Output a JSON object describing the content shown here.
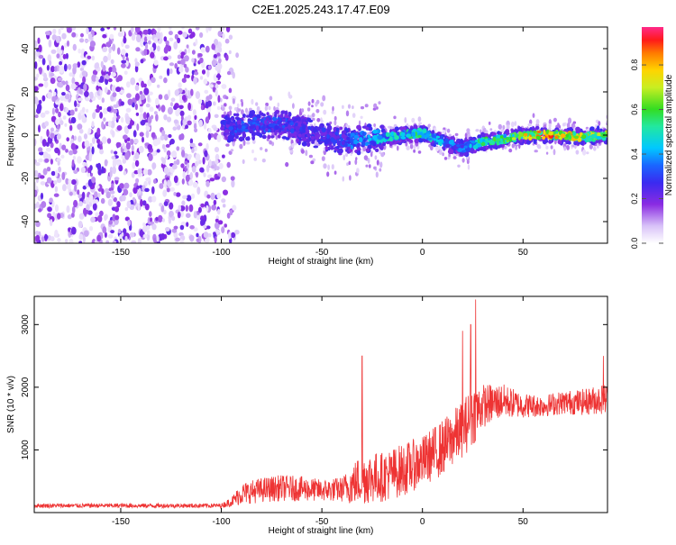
{
  "title": "C2E1.2025.243.17.47.E09",
  "chart_data": [
    {
      "type": "heatmap",
      "name": "spectrogram",
      "xlabel": "Height of straight line (km)",
      "ylabel": "Frequency (Hz)",
      "xlim": [
        -193,
        92
      ],
      "ylim": [
        -50,
        50
      ],
      "xticks": [
        -150,
        -100,
        -50,
        0,
        50
      ],
      "yticks": [
        -40,
        -20,
        0,
        20,
        40
      ],
      "colorbar": {
        "label": "Normalized spectral amplitude",
        "range": [
          0.0,
          0.97
        ],
        "ticks": [
          "0.0",
          "0.2",
          "0.4",
          "0.6",
          "0.8"
        ],
        "tick_values": [
          0.0,
          0.2,
          0.4,
          0.6,
          0.8
        ]
      },
      "signal_region_start_km": -100,
      "ridge": {
        "x": [
          -100,
          -90,
          -80,
          -70,
          -60,
          -50,
          -40,
          -30,
          -20,
          -10,
          0,
          10,
          20,
          30,
          40,
          50,
          60,
          70,
          80,
          90
        ],
        "freq": [
          3,
          4,
          5,
          5,
          2,
          0,
          -3,
          -2,
          -1,
          0,
          1,
          -3,
          -6,
          -3,
          -2,
          0,
          0,
          0,
          -1,
          0
        ],
        "amplitude": [
          0.3,
          0.35,
          0.35,
          0.35,
          0.3,
          0.3,
          0.35,
          0.45,
          0.5,
          0.55,
          0.6,
          0.45,
          0.4,
          0.6,
          0.65,
          0.8,
          0.97,
          0.85,
          0.8,
          0.75
        ]
      }
    },
    {
      "type": "line",
      "name": "snr",
      "xlabel": "Height of straight line (km)",
      "ylabel": "SNR (10 * v/v)",
      "xlim": [
        -193,
        92
      ],
      "ylim": [
        0,
        3450
      ],
      "xticks": [
        -150,
        -100,
        -50,
        0,
        50
      ],
      "yticks": [
        1000,
        2000,
        3000
      ],
      "color": "#ee3333",
      "envelope": {
        "x": [
          -193,
          -100,
          -95,
          -90,
          -80,
          -70,
          -60,
          -50,
          -40,
          -35,
          -30,
          -20,
          -10,
          0,
          10,
          20,
          25,
          30,
          40,
          50,
          60,
          70,
          80,
          92
        ],
        "base": [
          100,
          100,
          150,
          250,
          300,
          330,
          320,
          300,
          310,
          350,
          420,
          450,
          550,
          700,
          900,
          1200,
          1400,
          1600,
          1700,
          1650,
          1650,
          1700,
          1700,
          1750
        ],
        "amp": [
          70,
          70,
          150,
          350,
          400,
          420,
          400,
          350,
          400,
          650,
          850,
          800,
          850,
          800,
          900,
          900,
          1000,
          700,
          550,
          400,
          350,
          380,
          420,
          500
        ]
      },
      "peaks": [
        {
          "x": 26.5,
          "y": 3400
        },
        {
          "x": 24,
          "y": 3000
        },
        {
          "x": 20,
          "y": 2900
        },
        {
          "x": -30,
          "y": 2500
        },
        {
          "x": 90,
          "y": 2500
        }
      ]
    }
  ]
}
